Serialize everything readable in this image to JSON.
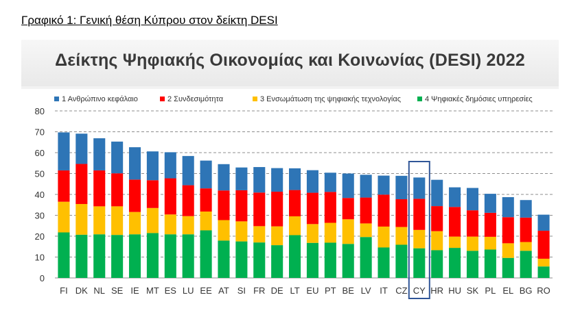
{
  "caption": "Γραφικό 1: Γενική θέση Κύπρου στον δείκτη DESI",
  "chart_data": {
    "type": "bar",
    "stacked": true,
    "title": "Δείκτης Ψηφιακής Οικονομίας και Κοινωνίας (DESI) 2022",
    "xlabel": "",
    "ylabel": "",
    "ylim": [
      0,
      80
    ],
    "yticks": [
      0,
      10,
      20,
      30,
      40,
      50,
      60,
      70,
      80
    ],
    "grid": true,
    "legend_position": "top",
    "highlight_category": "CY",
    "categories": [
      "FI",
      "DK",
      "NL",
      "SE",
      "IE",
      "MT",
      "ES",
      "LU",
      "EE",
      "AT",
      "SI",
      "FR",
      "DE",
      "LT",
      "EU",
      "PT",
      "BE",
      "LV",
      "IT",
      "CZ",
      "CY",
      "HR",
      "HU",
      "SK",
      "PL",
      "EL",
      "BG",
      "RO"
    ],
    "series": [
      {
        "name": "4 Ψηφιακές δημόσιες υπηρεσίες",
        "color": "#00b050",
        "values": [
          21.8,
          20.7,
          20.9,
          20.6,
          20.9,
          21.5,
          20.9,
          20.9,
          22.8,
          17.9,
          17.5,
          17.0,
          15.7,
          20.5,
          16.8,
          16.9,
          16.3,
          19.6,
          14.6,
          15.9,
          14.2,
          13.3,
          14.4,
          13.0,
          13.6,
          9.6,
          13.0,
          5.5
        ]
      },
      {
        "name": "3 Ενσωμάτωση της ψηφιακής τεχνολογίας",
        "color": "#ffc000",
        "values": [
          14.7,
          14.7,
          13.4,
          13.7,
          10.7,
          12.0,
          9.5,
          8.7,
          9.0,
          9.8,
          9.6,
          7.8,
          9.0,
          9.0,
          9.0,
          9.5,
          11.8,
          6.5,
          10.0,
          8.5,
          8.8,
          9.1,
          5.4,
          6.8,
          6.1,
          7.0,
          4.2,
          3.7
        ]
      },
      {
        "name": "2 Συνδεσιμότητα",
        "color": "#ff0000",
        "values": [
          15.0,
          19.2,
          17.2,
          15.8,
          15.5,
          13.3,
          17.3,
          14.8,
          11.1,
          14.2,
          14.9,
          16.1,
          16.6,
          12.6,
          15.0,
          14.8,
          10.2,
          12.4,
          15.3,
          13.3,
          14.9,
          12.0,
          14.2,
          12.6,
          11.5,
          12.5,
          11.7,
          13.4
        ]
      },
      {
        "name": "1 Ανθρώπινο κεφάλαιο",
        "color": "#2e75b6",
        "values": [
          18.2,
          14.5,
          15.4,
          15.2,
          15.5,
          13.8,
          12.5,
          14.0,
          13.3,
          12.6,
          10.9,
          12.2,
          11.3,
          10.4,
          10.8,
          9.2,
          11.7,
          10.9,
          9.1,
          11.2,
          10.2,
          12.6,
          9.4,
          10.7,
          9.1,
          9.6,
          8.4,
          7.7
        ]
      }
    ],
    "legend": [
      {
        "label": "1 Ανθρώπινο κεφάλαιο",
        "color": "#2e75b6"
      },
      {
        "label": "2 Συνδεσιμότητα",
        "color": "#ff0000"
      },
      {
        "label": "3 Ενσωμάτωση της ψηφιακής τεχνολογίας",
        "color": "#ffc000"
      },
      {
        "label": "4 Ψηφιακές δημόσιες υπηρεσίες",
        "color": "#00b050"
      }
    ]
  }
}
